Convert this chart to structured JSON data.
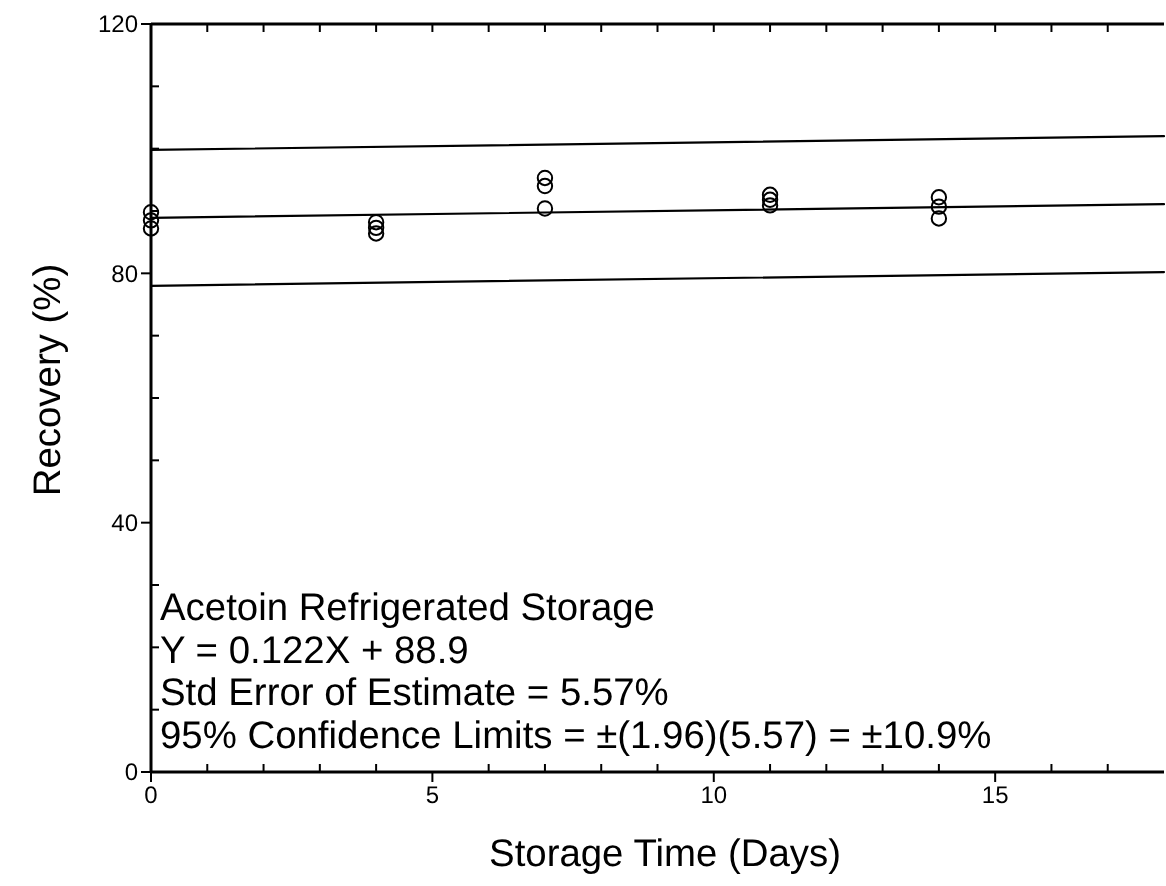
{
  "chart_data": {
    "type": "scatter",
    "xlabel": "Storage Time (Days)",
    "ylabel": "Recovery (%)",
    "annotations": [
      "Acetoin Refrigerated Storage",
      "Y = 0.122X + 88.9",
      "Std Error of Estimate = 5.57%",
      "95% Confidence Limits = ±(1.96)(5.57) = ±10.9%"
    ],
    "xlim": [
      0,
      18
    ],
    "ylim": [
      0,
      120
    ],
    "xticks": [
      0,
      {
        "value": 1,
        "label": null
      },
      {
        "value": 2,
        "label": null
      },
      {
        "value": 3,
        "label": null
      },
      {
        "value": 4,
        "label": null
      },
      5,
      {
        "value": 6,
        "label": null
      },
      {
        "value": 7,
        "label": null
      },
      {
        "value": 8,
        "label": null
      },
      {
        "value": 9,
        "label": null
      },
      10,
      {
        "value": 11,
        "label": null
      },
      {
        "value": 12,
        "label": null
      },
      {
        "value": 13,
        "label": null
      },
      {
        "value": 14,
        "label": null
      },
      15,
      {
        "value": 16,
        "label": null
      },
      {
        "value": 17,
        "label": null
      }
    ],
    "yticks": [
      0,
      {
        "value": 10,
        "label": null
      },
      {
        "value": 20,
        "label": null
      },
      {
        "value": 30,
        "label": null
      },
      40,
      {
        "value": 50,
        "label": null
      },
      {
        "value": 60,
        "label": null
      },
      {
        "value": 70,
        "label": null
      },
      80,
      {
        "value": 90,
        "label": null
      },
      {
        "value": 100,
        "label": null
      },
      {
        "value": 110,
        "label": null
      },
      120
    ],
    "line_style": "solid",
    "series": [
      {
        "marker": "circle",
        "color": "#000000",
        "x": [
          0,
          0,
          0,
          4,
          4,
          4,
          7,
          7,
          7,
          11,
          11,
          11,
          14,
          14,
          14
        ],
        "values": [
          89.8,
          88.5,
          87.2,
          88.2,
          87.3,
          86.4,
          95.3,
          94.0,
          90.4,
          92.6,
          91.8,
          90.9,
          92.2,
          90.7,
          88.8
        ]
      },
      {
        "type": "line",
        "color": "#000000",
        "x": [
          0,
          18
        ],
        "values": [
          88.9,
          91.1
        ]
      },
      {
        "type": "line",
        "color": "#000000",
        "x": [
          0,
          18
        ],
        "values": [
          99.8,
          102.0
        ]
      },
      {
        "type": "line",
        "color": "#000000",
        "x": [
          0,
          18
        ],
        "values": [
          78.0,
          80.2
        ]
      }
    ]
  }
}
